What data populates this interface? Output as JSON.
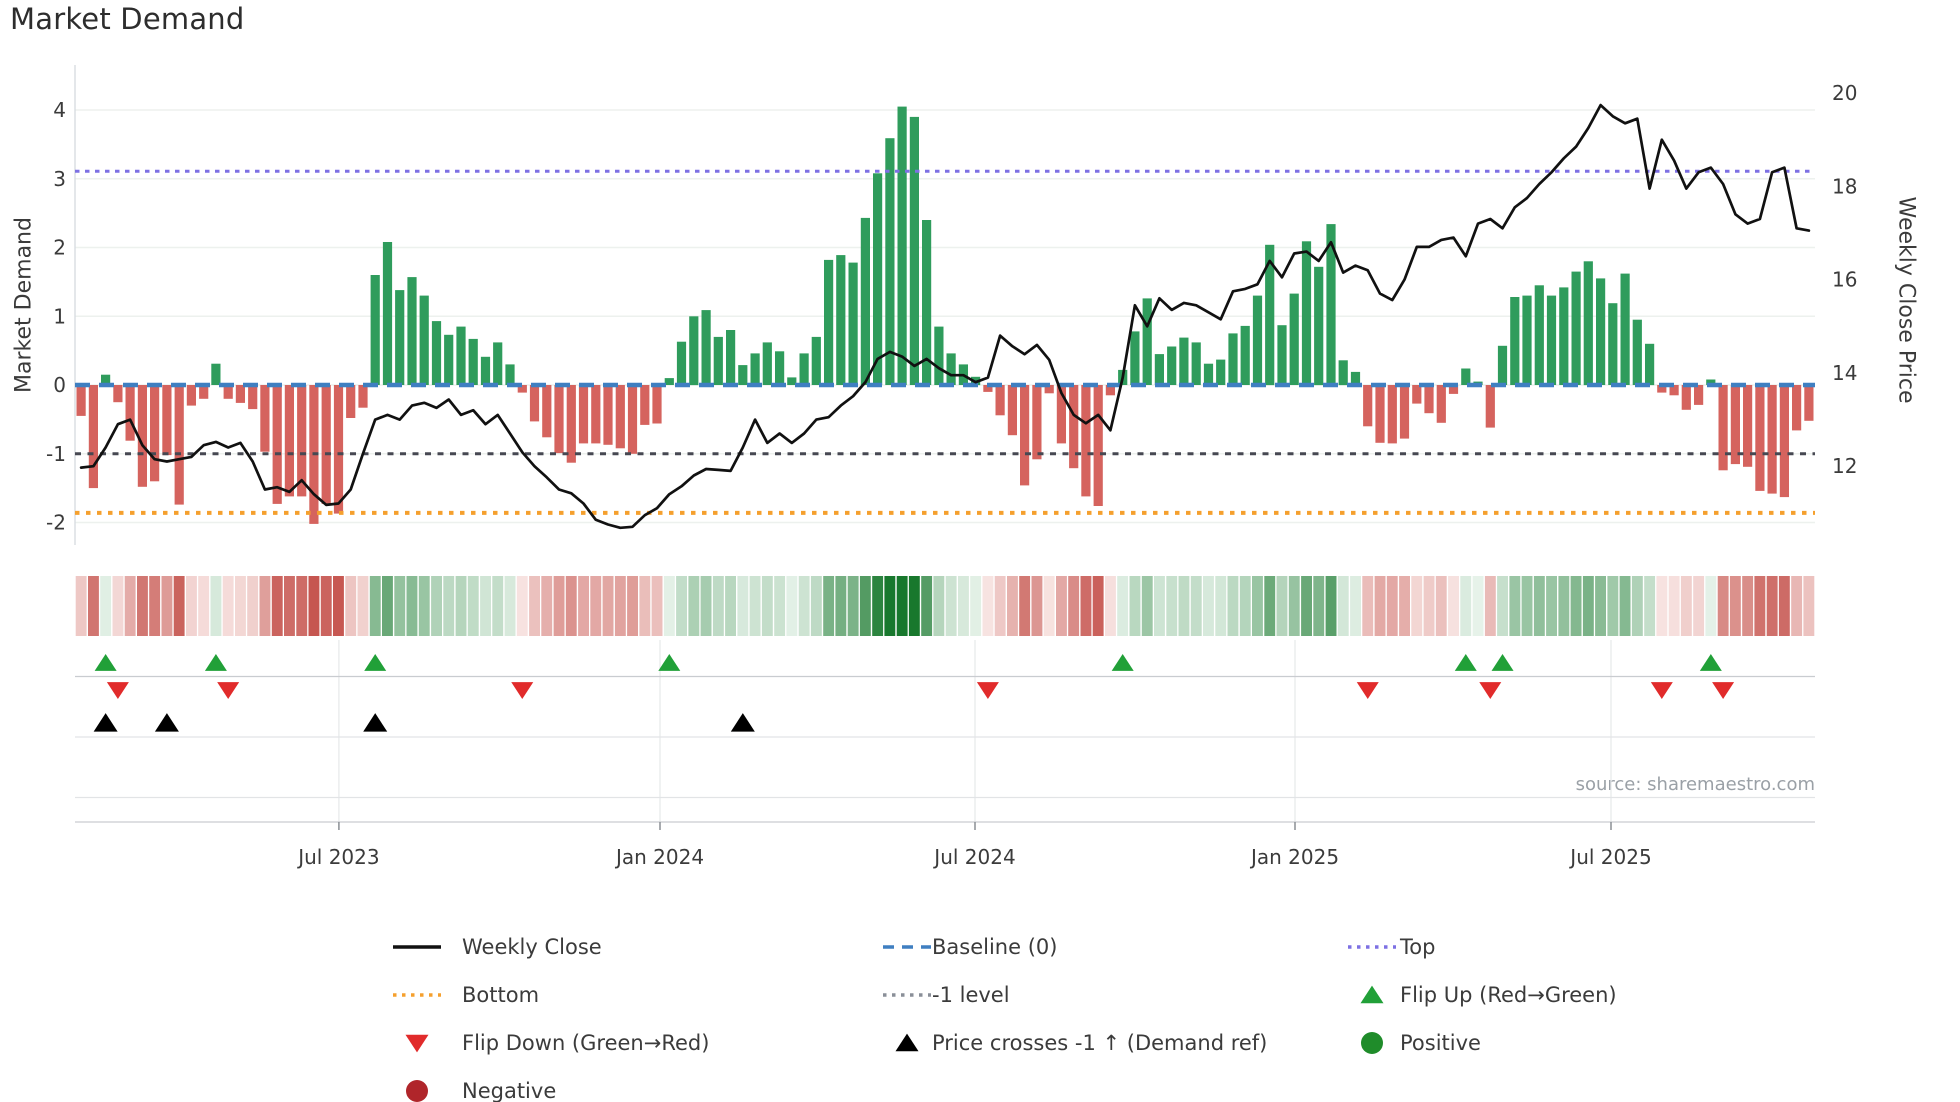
{
  "title": "Market Demand",
  "axes": {
    "left_title": "Market Demand",
    "right_title": "Weekly Close Price",
    "left_ticks": [
      4,
      3,
      2,
      1,
      0,
      -1,
      -2
    ],
    "right_ticks": [
      20,
      18,
      16,
      14,
      12
    ],
    "x_ticks": [
      {
        "label": "Jul 2023",
        "week": 21.04
      },
      {
        "label": "Jan 2024",
        "week": 47.24
      },
      {
        "label": "Jul 2024",
        "week": 72.95
      },
      {
        "label": "Jan 2025",
        "week": 99.06
      },
      {
        "label": "Jul 2025",
        "week": 124.85
      }
    ]
  },
  "source": "source: sharemaestro.com",
  "colors": {
    "bar_positive": "#2f9c5c",
    "bar_negative": "#d5635e",
    "price_line": "#111111",
    "baseline": "#3f7fc1",
    "top_line": "#7d70e3",
    "minus_one_line": "#474852",
    "bottom_line": "#f5a02e",
    "flip_up": "#21a038",
    "flip_down": "#e12b2b",
    "positive_dot": "#1f8c2a",
    "negative_dot": "#b0252a",
    "price_cross": "#000000"
  },
  "chart_data": {
    "type": "composite",
    "subtype": "weekly bars + line on twin axes + heatmap strip + event markers",
    "x_mode": "weekly slots, Feb 2023 through Oct 2025",
    "left_axis_label": "Market Demand",
    "right_axis_label": "Weekly Close Price",
    "left_range": [
      -2.33,
      4.65
    ],
    "right_range": [
      10.3,
      20.6
    ],
    "grid": "horizontal light gridlines at left-axis integers",
    "legend_position": "bottom, three columns",
    "reference_lines": {
      "baseline": 0,
      "top": 3.11,
      "minus_one_level": -1,
      "bottom": -1.86
    },
    "demand": [
      -0.45,
      -1.5,
      0.15,
      -0.25,
      -0.81,
      -1.48,
      -1.4,
      -1.02,
      -1.74,
      -0.3,
      -0.2,
      0.31,
      -0.2,
      -0.26,
      -0.35,
      -0.97,
      -1.73,
      -1.62,
      -1.62,
      -2.02,
      -1.73,
      -1.87,
      -0.48,
      -0.33,
      1.6,
      2.08,
      1.38,
      1.57,
      1.3,
      0.93,
      0.73,
      0.85,
      0.67,
      0.41,
      0.62,
      0.3,
      -0.11,
      -0.53,
      -0.76,
      -0.99,
      -1.13,
      -0.85,
      -0.85,
      -0.87,
      -0.92,
      -1.0,
      -0.58,
      -0.56,
      0.1,
      0.63,
      1.0,
      1.09,
      0.7,
      0.8,
      0.29,
      0.46,
      0.62,
      0.49,
      0.11,
      0.46,
      0.7,
      1.82,
      1.89,
      1.78,
      2.43,
      3.08,
      3.59,
      4.05,
      3.9,
      2.4,
      0.85,
      0.46,
      0.3,
      0.12,
      -0.1,
      -0.44,
      -0.73,
      -1.46,
      -1.08,
      -0.12,
      -0.85,
      -1.21,
      -1.62,
      -1.76,
      -0.15,
      0.22,
      0.78,
      1.26,
      0.45,
      0.56,
      0.69,
      0.62,
      0.31,
      0.37,
      0.75,
      0.86,
      1.3,
      2.04,
      0.87,
      1.33,
      2.09,
      1.72,
      2.34,
      0.36,
      0.19,
      -0.6,
      -0.84,
      -0.85,
      -0.78,
      -0.27,
      -0.41,
      -0.55,
      -0.13,
      0.24,
      0.05,
      -0.62,
      0.57,
      1.28,
      1.3,
      1.45,
      1.3,
      1.42,
      1.65,
      1.8,
      1.55,
      1.19,
      1.62,
      0.95,
      0.6,
      -0.11,
      -0.15,
      -0.36,
      -0.29,
      0.08,
      -1.24,
      -1.15,
      -1.19,
      -1.54,
      -1.58,
      -1.63,
      -0.66,
      -0.52
    ],
    "price": [
      11.97,
      12.0,
      12.4,
      12.9,
      13.0,
      12.45,
      12.15,
      12.1,
      12.15,
      12.2,
      12.45,
      12.52,
      12.4,
      12.5,
      12.1,
      11.5,
      11.55,
      11.45,
      11.7,
      11.4,
      11.17,
      11.2,
      11.5,
      12.27,
      13.0,
      13.1,
      13.0,
      13.3,
      13.36,
      13.25,
      13.43,
      13.1,
      13.2,
      12.9,
      13.1,
      12.7,
      12.3,
      12.0,
      11.76,
      11.5,
      11.42,
      11.2,
      10.85,
      10.75,
      10.68,
      10.7,
      10.95,
      11.1,
      11.4,
      11.57,
      11.8,
      11.94,
      11.92,
      11.9,
      12.4,
      13.0,
      12.5,
      12.7,
      12.5,
      12.7,
      13.0,
      13.05,
      13.3,
      13.5,
      13.8,
      14.3,
      14.45,
      14.35,
      14.15,
      14.3,
      14.1,
      13.95,
      13.95,
      13.8,
      13.9,
      14.8,
      14.57,
      14.4,
      14.6,
      14.28,
      13.57,
      13.1,
      12.92,
      13.1,
      12.77,
      13.9,
      15.45,
      15.0,
      15.6,
      15.35,
      15.5,
      15.45,
      15.3,
      15.15,
      15.75,
      15.8,
      15.9,
      16.4,
      16.05,
      16.56,
      16.6,
      16.4,
      16.8,
      16.15,
      16.3,
      16.2,
      15.7,
      15.56,
      16.0,
      16.7,
      16.7,
      16.85,
      16.9,
      16.5,
      17.2,
      17.3,
      17.1,
      17.55,
      17.75,
      18.05,
      18.3,
      18.6,
      18.85,
      19.25,
      19.74,
      19.5,
      19.35,
      19.45,
      17.95,
      19.0,
      18.55,
      17.95,
      18.3,
      18.4,
      18.05,
      17.4,
      17.2,
      17.3,
      18.3,
      18.4,
      17.1,
      17.05
    ],
    "flip_up_weeks": [
      2,
      11,
      24,
      48,
      85,
      113,
      116,
      133
    ],
    "flip_down_weeks": [
      3,
      12,
      36,
      74,
      105,
      115,
      129,
      134
    ],
    "price_cross_weeks": [
      2,
      7,
      24,
      54
    ],
    "heatmap": "one cell per week; red shades for negative demand, green shades for positive demand, intensity proportional to magnitude",
    "legend": [
      {
        "col": 1,
        "row": 1,
        "symbol": "solid-line",
        "color": "#111111",
        "label": "Weekly Close"
      },
      {
        "col": 1,
        "row": 2,
        "symbol": "dotted-line",
        "color": "#f5a02e",
        "label": "Bottom"
      },
      {
        "col": 1,
        "row": 3,
        "symbol": "triangle-down",
        "color": "#e12b2b",
        "label": "Flip Down (Green→Red)"
      },
      {
        "col": 1,
        "row": 4,
        "symbol": "circle",
        "color": "#b0252a",
        "label": "Negative"
      },
      {
        "col": 2,
        "row": 1,
        "symbol": "dashed-line",
        "color": "#3f7fc1",
        "label": "Baseline (0)"
      },
      {
        "col": 2,
        "row": 2,
        "symbol": "dotted-line",
        "color": "#8a8f98",
        "label": "-1 level"
      },
      {
        "col": 2,
        "row": 3,
        "symbol": "triangle-up",
        "color": "#000000",
        "label": "Price crosses -1 ↑ (Demand ref)"
      },
      {
        "col": 3,
        "row": 1,
        "symbol": "dotted-line",
        "color": "#7d70e3",
        "label": "Top"
      },
      {
        "col": 3,
        "row": 2,
        "symbol": "triangle-up",
        "color": "#21a038",
        "label": "Flip Up (Red→Green)"
      },
      {
        "col": 3,
        "row": 3,
        "symbol": "circle",
        "color": "#1f8c2a",
        "label": "Positive"
      }
    ]
  }
}
